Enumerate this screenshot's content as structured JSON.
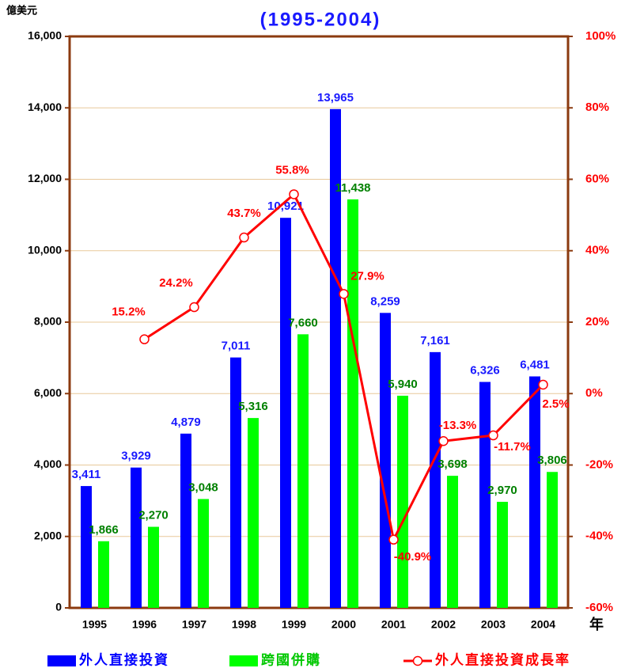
{
  "chart_data": {
    "type": "bar",
    "title": "(1995-2004)",
    "y_label": "億美元",
    "x_label": "年",
    "categories": [
      "1995",
      "1996",
      "1997",
      "1998",
      "1999",
      "2000",
      "2001",
      "2002",
      "2003",
      "2004"
    ],
    "series": [
      {
        "name": "外人直接投資",
        "color": "#0000ff",
        "label_color": "#1a1aff",
        "values": [
          3411,
          3929,
          4879,
          7011,
          10921,
          13965,
          8259,
          7161,
          6326,
          6481
        ],
        "value_labels": [
          "3,411",
          "3,929",
          "4,879",
          "7,011",
          "10,921",
          "13,965",
          "8,259",
          "7,161",
          "6,326",
          "6,481"
        ]
      },
      {
        "name": "跨國併購",
        "color": "#00ff00",
        "label_color": "#008000",
        "values": [
          1866,
          2270,
          3048,
          5316,
          7660,
          11438,
          5940,
          3698,
          2970,
          3806
        ],
        "value_labels": [
          "1,866",
          "2,270",
          "3,048",
          "5,316",
          "7,660",
          "11,438",
          "5,940",
          "3,698",
          "2,970",
          "3,806"
        ]
      },
      {
        "name": "外人直接投資成長率",
        "type": "line",
        "axis": "y2",
        "color": "#ff0000",
        "values": [
          null,
          15.2,
          24.2,
          43.7,
          55.8,
          27.9,
          -40.9,
          -13.3,
          -11.7,
          2.5
        ],
        "value_labels": [
          null,
          "15.2%",
          "24.2%",
          "43.7%",
          "55.8%",
          "27.9%",
          "-40.9%",
          "-13.3%",
          "-11.7%",
          "2.5%"
        ]
      }
    ],
    "ylim": [
      0,
      16000
    ],
    "yticks": [
      0,
      {
        "value": 2000,
        "label": "2,000"
      },
      {
        "value": 4000,
        "label": "4,000"
      },
      {
        "value": 6000,
        "label": "6,000"
      },
      {
        "value": 8000,
        "label": "8,000"
      },
      {
        "value": 10000,
        "label": "10,000"
      },
      {
        "value": 12000,
        "label": "12,000"
      },
      {
        "value": 14000,
        "label": "14,000"
      },
      {
        "value": 16000,
        "label": "16,000"
      }
    ],
    "y2lim": [
      -60,
      100
    ],
    "y2ticks": [
      {
        "value": -60,
        "label": "-60%"
      },
      {
        "value": -40,
        "label": "-40%"
      },
      {
        "value": -20,
        "label": "-20%"
      },
      {
        "value": 0,
        "label": "0%"
      },
      {
        "value": 20,
        "label": "20%"
      },
      {
        "value": 40,
        "label": "40%"
      },
      {
        "value": 60,
        "label": "60%"
      },
      {
        "value": 80,
        "label": "80%"
      },
      {
        "value": 100,
        "label": "100%"
      }
    ],
    "grid": true,
    "legend": "bottom"
  }
}
